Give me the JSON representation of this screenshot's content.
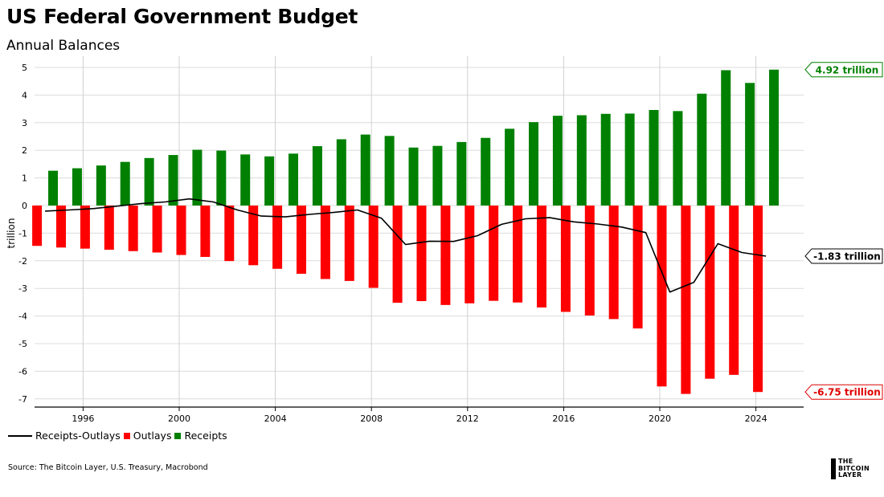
{
  "title": "US Federal Government Budget",
  "subtitle": "Annual Balances",
  "source": "Source: The Bitcoin Layer, U.S. Treasury, Macrobond",
  "logo": {
    "line1": "THE",
    "line2": "BITCOIN",
    "line3": "LAYER"
  },
  "legend": [
    {
      "label": "Receipts-Outlays",
      "kind": "line",
      "color": "#000000"
    },
    {
      "label": "Outlays",
      "kind": "box",
      "color": "#ff0000"
    },
    {
      "label": "Receipts",
      "kind": "box",
      "color": "#008000"
    }
  ],
  "callouts": {
    "receipts": {
      "text": "4.92 trillion",
      "color": "#008000"
    },
    "net": {
      "text": "-1.83 trillion",
      "color": "#000000"
    },
    "outlays": {
      "text": "-6.75 trillion",
      "color": "#e00000"
    }
  },
  "chart_data": {
    "type": "bar",
    "ylabel": "trillion",
    "ylim": [
      -7.2,
      5.2
    ],
    "yticks": [
      5,
      4,
      3,
      2,
      1,
      0,
      -1,
      -2,
      -3,
      -4,
      -5,
      -6,
      -7
    ],
    "xticks": [
      "1996",
      "2000",
      "2004",
      "2008",
      "2012",
      "2016",
      "2020",
      "2024"
    ],
    "grid": true,
    "colors": {
      "receipts": "#008000",
      "outlays": "#ff0000",
      "net": "#000000"
    },
    "receipts": [
      {
        "x": "1994-10",
        "y": 1.26
      },
      {
        "x": "1995-10",
        "y": 1.35
      },
      {
        "x": "1996-10",
        "y": 1.45
      },
      {
        "x": "1997-10",
        "y": 1.58
      },
      {
        "x": "1998-10",
        "y": 1.72
      },
      {
        "x": "1999-10",
        "y": 1.83
      },
      {
        "x": "2000-10",
        "y": 2.02
      },
      {
        "x": "2001-10",
        "y": 1.99
      },
      {
        "x": "2002-10",
        "y": 1.85
      },
      {
        "x": "2003-10",
        "y": 1.78
      },
      {
        "x": "2004-10",
        "y": 1.88
      },
      {
        "x": "2005-10",
        "y": 2.15
      },
      {
        "x": "2006-10",
        "y": 2.4
      },
      {
        "x": "2007-10",
        "y": 2.57
      },
      {
        "x": "2008-10",
        "y": 2.52
      },
      {
        "x": "2009-10",
        "y": 2.1
      },
      {
        "x": "2010-10",
        "y": 2.16
      },
      {
        "x": "2011-10",
        "y": 2.3
      },
      {
        "x": "2012-10",
        "y": 2.45
      },
      {
        "x": "2013-10",
        "y": 2.78
      },
      {
        "x": "2014-10",
        "y": 3.02
      },
      {
        "x": "2015-10",
        "y": 3.25
      },
      {
        "x": "2016-10",
        "y": 3.27
      },
      {
        "x": "2017-10",
        "y": 3.32
      },
      {
        "x": "2018-10",
        "y": 3.33
      },
      {
        "x": "2019-10",
        "y": 3.46
      },
      {
        "x": "2020-10",
        "y": 3.42
      },
      {
        "x": "2021-10",
        "y": 4.05
      },
      {
        "x": "2022-10",
        "y": 4.9
      },
      {
        "x": "2023-10",
        "y": 4.44
      },
      {
        "x": "2024-10",
        "y": 4.92
      }
    ],
    "outlays": [
      {
        "x": "1994-02",
        "y": -1.46
      },
      {
        "x": "1995-02",
        "y": -1.52
      },
      {
        "x": "1996-02",
        "y": -1.56
      },
      {
        "x": "1997-02",
        "y": -1.6
      },
      {
        "x": "1998-02",
        "y": -1.65
      },
      {
        "x": "1999-02",
        "y": -1.7
      },
      {
        "x": "2000-02",
        "y": -1.79
      },
      {
        "x": "2001-02",
        "y": -1.86
      },
      {
        "x": "2002-02",
        "y": -2.01
      },
      {
        "x": "2003-02",
        "y": -2.16
      },
      {
        "x": "2004-02",
        "y": -2.29
      },
      {
        "x": "2005-02",
        "y": -2.47
      },
      {
        "x": "2006-02",
        "y": -2.66
      },
      {
        "x": "2007-02",
        "y": -2.73
      },
      {
        "x": "2008-02",
        "y": -2.98
      },
      {
        "x": "2009-02",
        "y": -3.52
      },
      {
        "x": "2010-02",
        "y": -3.46
      },
      {
        "x": "2011-02",
        "y": -3.6
      },
      {
        "x": "2012-02",
        "y": -3.54
      },
      {
        "x": "2013-02",
        "y": -3.45
      },
      {
        "x": "2014-02",
        "y": -3.51
      },
      {
        "x": "2015-02",
        "y": -3.69
      },
      {
        "x": "2016-02",
        "y": -3.85
      },
      {
        "x": "2017-02",
        "y": -3.98
      },
      {
        "x": "2018-02",
        "y": -4.11
      },
      {
        "x": "2019-02",
        "y": -4.45
      },
      {
        "x": "2020-02",
        "y": -6.55
      },
      {
        "x": "2021-02",
        "y": -6.82
      },
      {
        "x": "2022-02",
        "y": -6.27
      },
      {
        "x": "2023-02",
        "y": -6.13
      },
      {
        "x": "2024-02",
        "y": -6.75
      }
    ],
    "receipts_minus_outlays": [
      {
        "x": "1994-06",
        "y": -0.2
      },
      {
        "x": "1995-06",
        "y": -0.16
      },
      {
        "x": "1996-06",
        "y": -0.11
      },
      {
        "x": "1997-06",
        "y": -0.02
      },
      {
        "x": "1998-06",
        "y": 0.07
      },
      {
        "x": "1999-06",
        "y": 0.13
      },
      {
        "x": "2000-06",
        "y": 0.24
      },
      {
        "x": "2001-06",
        "y": 0.13
      },
      {
        "x": "2002-06",
        "y": -0.16
      },
      {
        "x": "2003-06",
        "y": -0.38
      },
      {
        "x": "2004-06",
        "y": -0.41
      },
      {
        "x": "2005-06",
        "y": -0.32
      },
      {
        "x": "2006-06",
        "y": -0.25
      },
      {
        "x": "2007-06",
        "y": -0.16
      },
      {
        "x": "2008-06",
        "y": -0.46
      },
      {
        "x": "2009-06",
        "y": -1.41
      },
      {
        "x": "2010-06",
        "y": -1.29
      },
      {
        "x": "2011-06",
        "y": -1.3
      },
      {
        "x": "2012-06",
        "y": -1.09
      },
      {
        "x": "2013-06",
        "y": -0.68
      },
      {
        "x": "2014-06",
        "y": -0.48
      },
      {
        "x": "2015-06",
        "y": -0.44
      },
      {
        "x": "2016-06",
        "y": -0.59
      },
      {
        "x": "2017-06",
        "y": -0.67
      },
      {
        "x": "2018-06",
        "y": -0.78
      },
      {
        "x": "2019-06",
        "y": -0.98
      },
      {
        "x": "2020-06",
        "y": -3.13
      },
      {
        "x": "2021-06",
        "y": -2.78
      },
      {
        "x": "2022-06",
        "y": -1.38
      },
      {
        "x": "2023-06",
        "y": -1.7
      },
      {
        "x": "2024-06",
        "y": -1.83
      }
    ]
  }
}
